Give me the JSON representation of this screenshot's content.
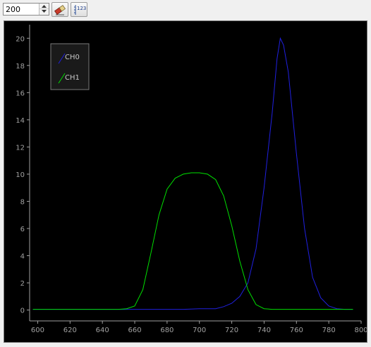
{
  "toolbar": {
    "points_value": "200",
    "clear_icon": "eraser-icon",
    "values_icon": "numbers-123-icon",
    "values_label": "123"
  },
  "colors": {
    "background": "#000000",
    "axis": "#a0a0a0",
    "ch0": "#2020e0",
    "ch1": "#00e000"
  },
  "chart_data": {
    "type": "line",
    "xlim": [
      595,
      800
    ],
    "ylim": [
      -0.8,
      21
    ],
    "x_ticks": [
      600,
      620,
      640,
      660,
      680,
      700,
      720,
      740,
      760,
      780,
      800
    ],
    "y_ticks": [
      0,
      2,
      4,
      6,
      8,
      10,
      12,
      14,
      16,
      18,
      20
    ],
    "grid": false,
    "legend_position": "top-left",
    "series": [
      {
        "name": "CH0",
        "color": "#2020e0",
        "x": [
          597,
          610,
          620,
          630,
          640,
          650,
          660,
          670,
          680,
          690,
          700,
          710,
          715,
          720,
          725,
          730,
          735,
          740,
          745,
          748,
          750,
          752,
          755,
          760,
          765,
          770,
          775,
          780,
          785,
          790,
          795
        ],
        "y": [
          0.05,
          0.05,
          0.05,
          0.05,
          0.05,
          0.05,
          0.05,
          0.05,
          0.05,
          0.05,
          0.1,
          0.1,
          0.25,
          0.5,
          1.0,
          2.0,
          4.5,
          9.0,
          14.5,
          18.5,
          20.0,
          19.5,
          17.5,
          11.5,
          6.0,
          2.4,
          0.9,
          0.3,
          0.1,
          0.05,
          0.05
        ]
      },
      {
        "name": "CH1",
        "color": "#00e000",
        "x": [
          597,
          610,
          620,
          630,
          640,
          650,
          655,
          660,
          665,
          670,
          675,
          680,
          685,
          690,
          695,
          700,
          705,
          710,
          715,
          720,
          725,
          730,
          735,
          740,
          745,
          750,
          760,
          770,
          780,
          790,
          795
        ],
        "y": [
          0.05,
          0.05,
          0.05,
          0.05,
          0.05,
          0.05,
          0.1,
          0.3,
          1.5,
          4.2,
          7.0,
          8.9,
          9.7,
          10.0,
          10.1,
          10.1,
          10.0,
          9.6,
          8.4,
          6.2,
          3.6,
          1.5,
          0.4,
          0.1,
          0.05,
          0.05,
          0.05,
          0.05,
          0.05,
          0.05,
          0.05
        ]
      }
    ]
  }
}
